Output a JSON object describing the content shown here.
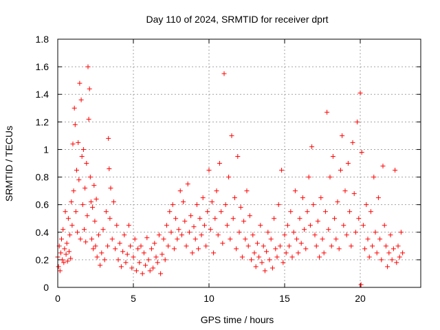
{
  "chart_data": {
    "type": "scatter",
    "title": "Day 110 of 2024, SRMTID for receiver dprt",
    "xlabel": "GPS time / hours",
    "ylabel": "SRMTID / TECUs",
    "xlim": [
      0,
      24
    ],
    "ylim": [
      0,
      1.8
    ],
    "xticks": [
      0,
      5,
      10,
      15,
      20
    ],
    "yticks": [
      0,
      0.2,
      0.4,
      0.6,
      0.8,
      1,
      1.2,
      1.4,
      1.6,
      1.8
    ],
    "xtick_labels": [
      "0",
      "5",
      "10",
      "15",
      "20"
    ],
    "ytick_labels": [
      "0",
      "0.2",
      "0.4",
      "0.6",
      "0.8",
      "1",
      "1.2",
      "1.4",
      "1.6",
      "1.8"
    ],
    "grid": true,
    "marker": "+",
    "color": "#ff0000",
    "series": [
      {
        "name": "SRMTID",
        "x": [
          0.0,
          0.05,
          0.1,
          0.15,
          0.2,
          0.25,
          0.3,
          0.35,
          0.4,
          0.45,
          0.5,
          0.55,
          0.6,
          0.65,
          0.7,
          0.75,
          0.8,
          0.85,
          0.9,
          0.95,
          1.0,
          1.05,
          1.1,
          1.15,
          1.2,
          1.25,
          1.3,
          1.35,
          1.4,
          1.45,
          1.5,
          1.55,
          1.6,
          1.65,
          1.7,
          1.75,
          1.8,
          1.85,
          1.9,
          1.95,
          2.0,
          2.05,
          2.1,
          2.15,
          2.2,
          2.25,
          2.3,
          2.35,
          2.4,
          2.45,
          2.5,
          2.55,
          2.6,
          2.7,
          2.8,
          2.9,
          3.0,
          3.1,
          3.2,
          3.3,
          3.35,
          3.4,
          3.45,
          3.5,
          3.6,
          3.7,
          3.8,
          3.9,
          4.0,
          4.1,
          4.2,
          4.3,
          4.4,
          4.5,
          4.6,
          4.7,
          4.8,
          4.9,
          5.0,
          5.1,
          5.2,
          5.3,
          5.4,
          5.5,
          5.6,
          5.7,
          5.8,
          5.9,
          6.0,
          6.1,
          6.2,
          6.3,
          6.4,
          6.5,
          6.6,
          6.7,
          6.8,
          6.9,
          7.0,
          7.1,
          7.2,
          7.3,
          7.4,
          7.5,
          7.6,
          7.7,
          7.8,
          7.9,
          8.0,
          8.1,
          8.2,
          8.3,
          8.4,
          8.5,
          8.6,
          8.7,
          8.8,
          8.9,
          9.0,
          9.1,
          9.2,
          9.3,
          9.4,
          9.5,
          9.6,
          9.7,
          9.8,
          9.9,
          10.0,
          10.1,
          10.2,
          10.3,
          10.4,
          10.5,
          10.6,
          10.7,
          10.8,
          10.9,
          11.0,
          11.1,
          11.2,
          11.3,
          11.4,
          11.5,
          11.6,
          11.7,
          11.8,
          11.9,
          12.0,
          12.1,
          12.2,
          12.3,
          12.4,
          12.5,
          12.6,
          12.7,
          12.8,
          12.9,
          13.0,
          13.1,
          13.2,
          13.3,
          13.4,
          13.5,
          13.6,
          13.7,
          13.8,
          13.9,
          14.0,
          14.1,
          14.2,
          14.3,
          14.4,
          14.5,
          14.6,
          14.7,
          14.8,
          14.9,
          15.0,
          15.1,
          15.2,
          15.3,
          15.4,
          15.5,
          15.6,
          15.7,
          15.8,
          15.9,
          16.0,
          16.1,
          16.2,
          16.3,
          16.4,
          16.5,
          16.6,
          16.7,
          16.8,
          16.9,
          17.0,
          17.1,
          17.2,
          17.3,
          17.4,
          17.5,
          17.6,
          17.7,
          17.8,
          17.9,
          18.0,
          18.1,
          18.2,
          18.3,
          18.4,
          18.5,
          18.6,
          18.7,
          18.8,
          18.9,
          19.0,
          19.1,
          19.2,
          19.3,
          19.4,
          19.5,
          19.6,
          19.7,
          19.8,
          19.9,
          20.0,
          20.05,
          20.1,
          20.2,
          20.3,
          20.4,
          20.5,
          20.6,
          20.7,
          20.8,
          20.9,
          21.0,
          21.1,
          21.2,
          21.3,
          21.4,
          21.5,
          21.6,
          21.7,
          21.8,
          21.9,
          22.0,
          22.1,
          22.2,
          22.3,
          22.4,
          22.5,
          22.6,
          22.7,
          22.8
        ],
        "y": [
          0.22,
          0.15,
          0.3,
          0.12,
          0.25,
          0.35,
          0.2,
          0.42,
          0.18,
          0.28,
          0.55,
          0.24,
          0.32,
          0.19,
          0.5,
          0.26,
          0.38,
          0.21,
          0.62,
          0.45,
          1.04,
          0.7,
          1.3,
          1.18,
          0.55,
          0.85,
          0.4,
          1.05,
          0.78,
          1.48,
          0.35,
          1.36,
          0.95,
          0.6,
          1.0,
          0.42,
          0.72,
          0.33,
          0.9,
          0.52,
          1.6,
          1.22,
          1.44,
          0.8,
          0.62,
          0.35,
          0.58,
          0.28,
          0.74,
          0.48,
          0.3,
          0.64,
          0.22,
          0.38,
          0.16,
          0.25,
          0.42,
          0.2,
          0.55,
          0.3,
          1.08,
          0.86,
          0.5,
          0.72,
          0.35,
          0.62,
          0.28,
          0.45,
          0.2,
          0.32,
          0.15,
          0.26,
          0.38,
          0.18,
          0.24,
          0.45,
          0.3,
          0.14,
          0.22,
          0.35,
          0.12,
          0.28,
          0.18,
          0.3,
          0.1,
          0.25,
          0.16,
          0.36,
          0.2,
          0.12,
          0.28,
          0.14,
          0.32,
          0.22,
          0.18,
          0.38,
          0.1,
          0.24,
          0.35,
          0.2,
          0.45,
          0.3,
          0.55,
          0.4,
          0.6,
          0.28,
          0.5,
          0.35,
          0.42,
          0.7,
          0.38,
          0.62,
          0.48,
          0.3,
          0.75,
          0.4,
          0.52,
          0.25,
          0.44,
          0.35,
          0.6,
          0.28,
          0.5,
          0.38,
          0.65,
          0.45,
          0.3,
          0.55,
          0.85,
          0.42,
          0.62,
          0.25,
          0.5,
          0.7,
          0.38,
          0.9,
          0.55,
          0.32,
          1.55,
          0.6,
          0.45,
          0.8,
          0.35,
          1.1,
          0.5,
          0.65,
          0.28,
          0.95,
          0.4,
          0.58,
          0.22,
          0.48,
          0.35,
          0.7,
          0.3,
          0.52,
          0.2,
          0.38,
          0.25,
          0.15,
          0.32,
          0.22,
          0.45,
          0.18,
          0.3,
          0.12,
          0.26,
          0.4,
          0.2,
          0.35,
          0.14,
          0.5,
          0.28,
          0.22,
          0.6,
          0.3,
          0.85,
          0.18,
          0.38,
          0.25,
          0.45,
          0.3,
          0.55,
          0.22,
          0.4,
          0.7,
          0.35,
          0.25,
          0.5,
          0.32,
          0.65,
          0.42,
          0.28,
          0.55,
          0.8,
          0.45,
          1.02,
          0.6,
          0.38,
          0.3,
          0.48,
          0.22,
          0.65,
          0.35,
          0.25,
          0.55,
          1.27,
          0.42,
          0.8,
          0.3,
          0.95,
          0.5,
          0.35,
          0.62,
          0.28,
          0.85,
          1.1,
          0.45,
          0.7,
          0.38,
          0.9,
          0.55,
          0.3,
          1.05,
          0.68,
          0.4,
          1.2,
          0.5,
          1.41,
          0.02,
          0.98,
          0.45,
          0.28,
          0.6,
          0.35,
          0.22,
          0.55,
          0.3,
          0.8,
          0.4,
          0.25,
          0.65,
          0.35,
          0.2,
          0.88,
          0.45,
          0.3,
          0.15,
          0.25,
          0.38,
          0.2,
          0.28,
          0.85,
          0.18,
          0.3,
          0.22,
          0.4,
          0.25
        ]
      }
    ]
  }
}
